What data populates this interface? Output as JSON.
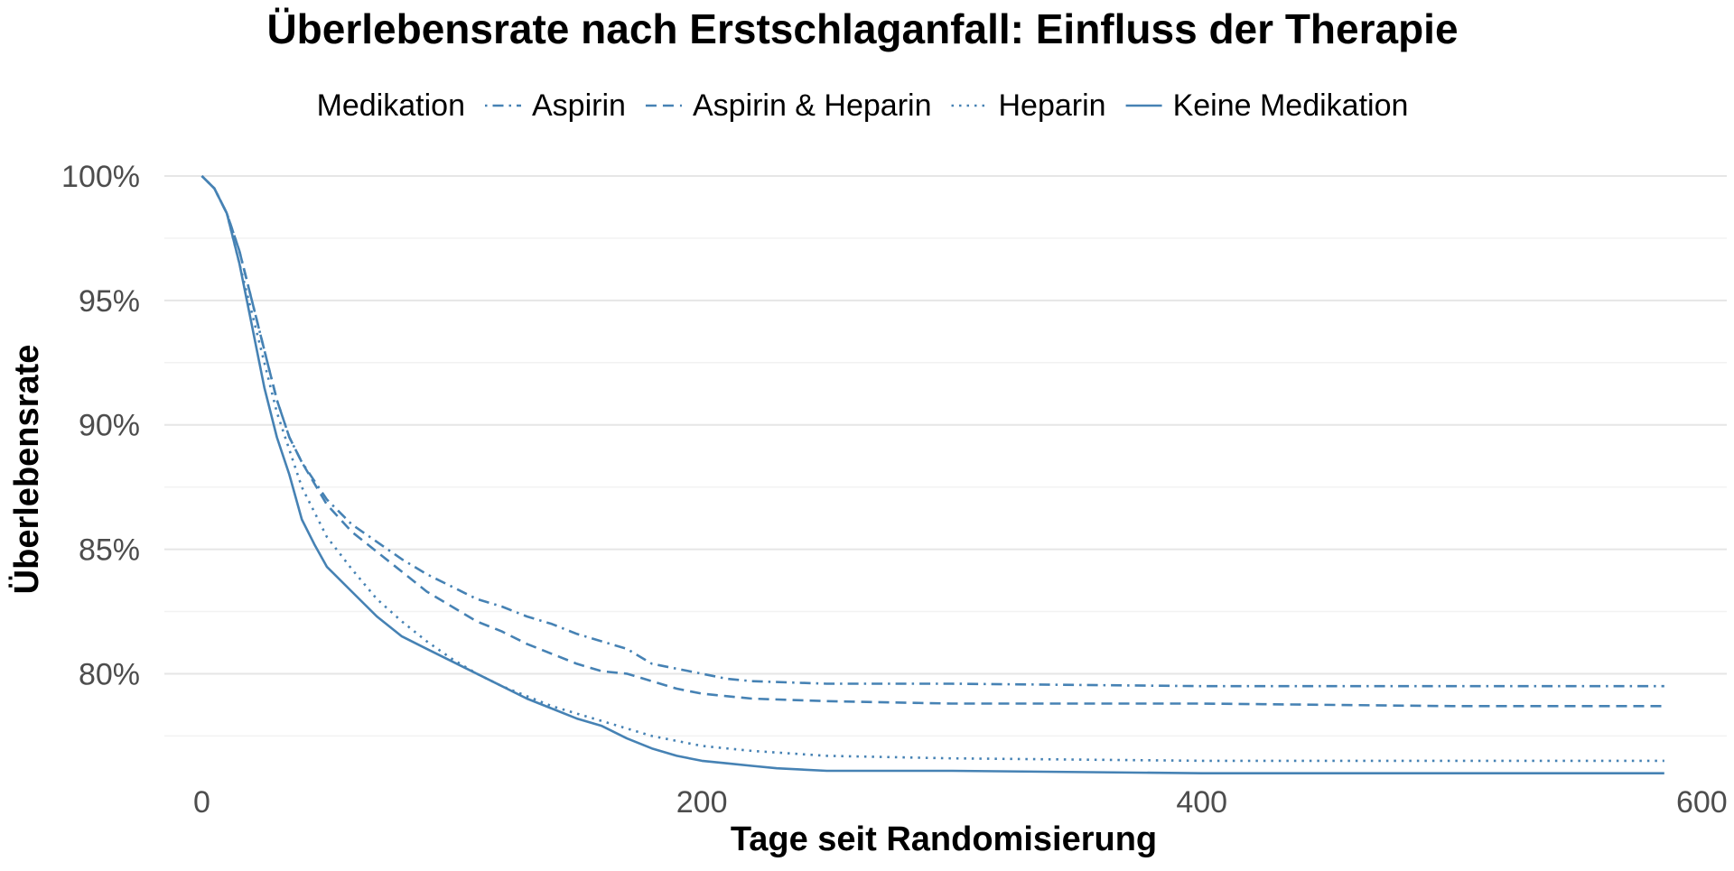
{
  "chart_data": {
    "type": "line",
    "title": "Überlebensrate nach Erstschlaganfall: Einfluss der Therapie",
    "xlabel": "Tage seit Randomisierung",
    "ylabel": "Überlebensrate",
    "xlim": [
      -15,
      610
    ],
    "ylim": [
      0.757,
      1.0
    ],
    "x_ticks": [
      0,
      200,
      400,
      600
    ],
    "x_tick_labels": [
      "0",
      "200",
      "400",
      "600"
    ],
    "y_ticks": [
      0.8,
      0.85,
      0.9,
      0.95,
      1.0
    ],
    "y_tick_labels": [
      "80%",
      "85%",
      "90%",
      "95%",
      "100%"
    ],
    "grid": true,
    "legend": {
      "title": "Medikation",
      "position": "top"
    },
    "line_color": "#4682B4",
    "series": [
      {
        "name": "Aspirin",
        "linestyle": "dashdot",
        "x": [
          0,
          5,
          10,
          15,
          20,
          25,
          30,
          35,
          40,
          50,
          60,
          70,
          80,
          90,
          100,
          110,
          120,
          130,
          140,
          150,
          160,
          170,
          180,
          190,
          200,
          210,
          220,
          250,
          300,
          400,
          500,
          585
        ],
        "y": [
          1.0,
          0.995,
          0.985,
          0.97,
          0.95,
          0.93,
          0.91,
          0.895,
          0.885,
          0.87,
          0.86,
          0.853,
          0.846,
          0.84,
          0.835,
          0.83,
          0.827,
          0.823,
          0.82,
          0.816,
          0.813,
          0.81,
          0.804,
          0.802,
          0.8,
          0.798,
          0.797,
          0.796,
          0.796,
          0.795,
          0.795,
          0.795
        ]
      },
      {
        "name": "Aspirin & Heparin",
        "linestyle": "dashed",
        "x": [
          0,
          5,
          10,
          15,
          20,
          25,
          30,
          35,
          40,
          50,
          60,
          70,
          80,
          90,
          100,
          110,
          120,
          130,
          140,
          150,
          160,
          170,
          180,
          190,
          200,
          210,
          220,
          250,
          300,
          400,
          500,
          585
        ],
        "y": [
          1.0,
          0.995,
          0.985,
          0.97,
          0.95,
          0.93,
          0.91,
          0.895,
          0.885,
          0.868,
          0.857,
          0.849,
          0.841,
          0.833,
          0.827,
          0.821,
          0.817,
          0.812,
          0.808,
          0.804,
          0.801,
          0.8,
          0.797,
          0.794,
          0.792,
          0.791,
          0.79,
          0.789,
          0.788,
          0.788,
          0.787,
          0.787
        ]
      },
      {
        "name": "Heparin",
        "linestyle": "dotted",
        "x": [
          0,
          5,
          10,
          15,
          20,
          25,
          30,
          35,
          40,
          50,
          60,
          70,
          80,
          90,
          100,
          110,
          120,
          130,
          140,
          150,
          160,
          170,
          180,
          190,
          200,
          210,
          220,
          250,
          300,
          400,
          500,
          585
        ],
        "y": [
          1.0,
          0.995,
          0.985,
          0.965,
          0.945,
          0.925,
          0.905,
          0.89,
          0.875,
          0.855,
          0.842,
          0.83,
          0.821,
          0.813,
          0.806,
          0.8,
          0.795,
          0.791,
          0.787,
          0.784,
          0.781,
          0.778,
          0.775,
          0.773,
          0.771,
          0.77,
          0.769,
          0.767,
          0.766,
          0.765,
          0.765,
          0.765
        ]
      },
      {
        "name": "Keine Medikation",
        "linestyle": "solid",
        "x": [
          0,
          5,
          10,
          15,
          20,
          25,
          30,
          35,
          40,
          45,
          50,
          60,
          70,
          80,
          90,
          100,
          110,
          120,
          130,
          140,
          150,
          160,
          170,
          180,
          190,
          200,
          210,
          220,
          230,
          250,
          300,
          400,
          500,
          585
        ],
        "y": [
          1.0,
          0.995,
          0.985,
          0.965,
          0.94,
          0.915,
          0.895,
          0.88,
          0.862,
          0.852,
          0.843,
          0.833,
          0.823,
          0.815,
          0.81,
          0.805,
          0.8,
          0.795,
          0.79,
          0.786,
          0.782,
          0.779,
          0.774,
          0.77,
          0.767,
          0.765,
          0.764,
          0.763,
          0.762,
          0.761,
          0.761,
          0.76,
          0.76,
          0.76
        ]
      }
    ]
  }
}
